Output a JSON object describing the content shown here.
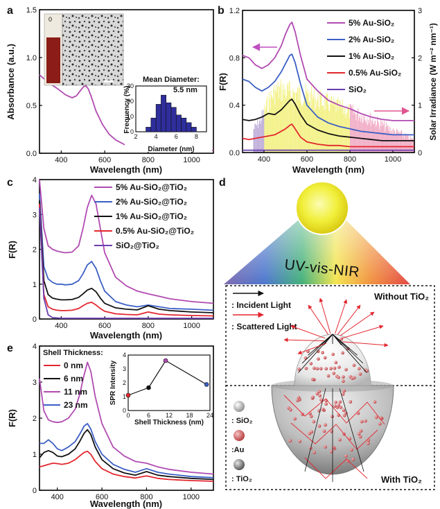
{
  "panel_labels": [
    "a",
    "b",
    "c",
    "d",
    "e"
  ],
  "chart_data": [
    {
      "panel": "a",
      "type": "line",
      "xlabel": "Wavelength (nm)",
      "ylabel": "Absorbance (a.u.)",
      "xlim": [
        300,
        1100
      ],
      "ylim": [
        0,
        1.5
      ],
      "xticks": [
        "400",
        "600",
        "800",
        "1000"
      ],
      "yticks": [
        "0.0",
        "0.5",
        "1.0",
        "1.5"
      ],
      "series": [
        {
          "color": "#b14ab1",
          "x": [
            300,
            340,
            380,
            420,
            450,
            470,
            490,
            505,
            515,
            525,
            540,
            560,
            590,
            620,
            650,
            700,
            800,
            900,
            1000,
            1100
          ],
          "y": [
            0.82,
            0.74,
            0.68,
            0.61,
            0.58,
            0.6,
            0.66,
            0.7,
            0.7,
            0.67,
            0.58,
            0.44,
            0.3,
            0.2,
            0.14,
            0.08,
            0.05,
            0.04,
            0.03,
            0.03
          ]
        }
      ],
      "inset_image_label": "0",
      "inset_hist": {
        "type": "bar",
        "title": "Mean Diameter:",
        "value_label": "5.5 nm",
        "xlabel": "Diameter (nm)",
        "ylabel": "Frequency (%)",
        "xlim": [
          2,
          9
        ],
        "ylim": [
          0,
          30
        ],
        "xticks": [
          "2",
          "4",
          "6",
          "8"
        ],
        "yticks": [
          "0",
          "10",
          "20",
          "30"
        ],
        "ytick_values": [
          0,
          10,
          20,
          30
        ],
        "xtick_values": [
          2,
          4,
          6,
          8
        ],
        "bins": [
          3,
          3.5,
          4,
          4.5,
          5,
          5.5,
          6,
          6.5,
          7,
          7.5,
          8
        ],
        "values": [
          3,
          9,
          18,
          24,
          19,
          16,
          11,
          9,
          6,
          3
        ],
        "color": "#2e2e9c"
      }
    },
    {
      "panel": "b",
      "type": "line",
      "xlabel": "Wavelength (nm)",
      "ylabel": "F(R)",
      "ylabel_right": "Solar Irradiance (W m⁻² nm⁻¹)",
      "xlim": [
        300,
        1100
      ],
      "ylim": [
        0,
        1.2
      ],
      "ylim_right": [
        0,
        3
      ],
      "xticks": [
        "400",
        "600",
        "800",
        "1000"
      ],
      "yticks": [
        "0.0",
        "0.4",
        "0.8",
        "1.2"
      ],
      "yticks_right": [
        "0",
        "1",
        "2",
        "3"
      ],
      "legend_position": "top-right",
      "series": [
        {
          "name": "5% Au-SiO₂",
          "color": "#b14ab1",
          "x": [
            300,
            330,
            360,
            390,
            420,
            450,
            480,
            500,
            520,
            530,
            545,
            570,
            600,
            650,
            700,
            750,
            800,
            850,
            900,
            950,
            1000,
            1050,
            1100
          ],
          "y": [
            0.82,
            0.8,
            0.74,
            0.71,
            0.74,
            0.8,
            0.9,
            1.0,
            1.08,
            1.1,
            1.02,
            0.82,
            0.62,
            0.52,
            0.44,
            0.4,
            0.37,
            0.33,
            0.3,
            0.28,
            0.27,
            0.27,
            0.27
          ]
        },
        {
          "name": "2% Au-SiO₂",
          "color": "#3b5fc4",
          "x": [
            300,
            330,
            360,
            390,
            420,
            450,
            480,
            500,
            520,
            530,
            545,
            570,
            600,
            650,
            700,
            750,
            800,
            850,
            900,
            950,
            1000,
            1050,
            1100
          ],
          "y": [
            0.62,
            0.6,
            0.55,
            0.52,
            0.55,
            0.6,
            0.68,
            0.75,
            0.82,
            0.83,
            0.76,
            0.58,
            0.4,
            0.3,
            0.25,
            0.22,
            0.2,
            0.18,
            0.17,
            0.16,
            0.15,
            0.15,
            0.15
          ]
        },
        {
          "name": "1% Au-SiO₂",
          "color": "#111111",
          "x": [
            300,
            330,
            360,
            390,
            420,
            450,
            480,
            500,
            520,
            530,
            545,
            570,
            600,
            650,
            700,
            750,
            800,
            850,
            900,
            950,
            1000,
            1050,
            1100
          ],
          "y": [
            0.28,
            0.27,
            0.28,
            0.3,
            0.33,
            0.32,
            0.36,
            0.4,
            0.44,
            0.45,
            0.41,
            0.32,
            0.24,
            0.19,
            0.16,
            0.14,
            0.13,
            0.12,
            0.11,
            0.1,
            0.1,
            0.1,
            0.1
          ]
        },
        {
          "name": "0.5% Au-SiO₂",
          "color": "#e3262e",
          "x": [
            300,
            330,
            360,
            390,
            420,
            450,
            480,
            500,
            520,
            530,
            545,
            570,
            600,
            650,
            700,
            750,
            800,
            850,
            900,
            950,
            1000,
            1050,
            1100
          ],
          "y": [
            0.12,
            0.11,
            0.12,
            0.13,
            0.14,
            0.15,
            0.18,
            0.2,
            0.23,
            0.24,
            0.2,
            0.13,
            0.09,
            0.07,
            0.06,
            0.06,
            0.05,
            0.05,
            0.05,
            0.05,
            0.05,
            0.05,
            0.05
          ]
        },
        {
          "name": "SiO₂",
          "color": "#6a3cb0",
          "x": [
            300,
            500,
            800,
            1100
          ],
          "y": [
            0.02,
            0.02,
            0.02,
            0.02
          ]
        }
      ],
      "solar_irradiance": {
        "colors": {
          "uv": "#b9a6d6",
          "vis": "#f2f07a",
          "nir": "#f0a5bf"
        },
        "x": [
          350,
          380,
          400,
          420,
          450,
          480,
          500,
          550,
          600,
          650,
          700,
          750,
          800,
          850,
          900,
          950,
          1000,
          1050,
          1100
        ],
        "y": [
          0.6,
          0.8,
          1.05,
          1.3,
          1.55,
          1.6,
          1.55,
          1.5,
          1.45,
          1.35,
          1.25,
          1.15,
          1.05,
          0.95,
          0.85,
          0.7,
          0.55,
          0.45,
          0.3
        ]
      }
    },
    {
      "panel": "c",
      "type": "line",
      "xlabel": "Wavelength (nm)",
      "ylabel": "F(R)",
      "xlim": [
        300,
        1100
      ],
      "ylim": [
        0,
        4
      ],
      "xticks": [
        "400",
        "600",
        "800",
        "1000"
      ],
      "yticks": [
        "0",
        "1",
        "2",
        "3",
        "4"
      ],
      "legend_position": "top-right",
      "series": [
        {
          "name": "5% Au-SiO₂@TiO₂",
          "color": "#b14ab1",
          "x": [
            300,
            320,
            340,
            360,
            380,
            400,
            420,
            450,
            480,
            500,
            520,
            540,
            560,
            580,
            600,
            650,
            700,
            750,
            800,
            850,
            900,
            1000,
            1100
          ],
          "y": [
            4.0,
            2.6,
            2.1,
            2.0,
            1.95,
            1.92,
            1.9,
            1.92,
            2.1,
            2.6,
            3.2,
            3.55,
            3.3,
            2.6,
            1.9,
            1.2,
            0.95,
            0.8,
            0.72,
            0.65,
            0.58,
            0.5,
            0.45
          ]
        },
        {
          "name": "2% Au-SiO₂@TiO₂",
          "color": "#3b5fc4",
          "x": [
            300,
            320,
            340,
            360,
            380,
            400,
            420,
            450,
            480,
            500,
            520,
            540,
            560,
            580,
            600,
            650,
            700,
            750,
            800,
            850,
            900,
            1000,
            1100
          ],
          "y": [
            3.6,
            1.5,
            1.15,
            1.05,
            1.0,
            1.0,
            0.98,
            1.0,
            1.1,
            1.3,
            1.55,
            1.65,
            1.45,
            1.1,
            0.8,
            0.5,
            0.4,
            0.35,
            0.4,
            0.35,
            0.3,
            0.28,
            0.25
          ]
        },
        {
          "name": "1% Au-SiO₂@TiO₂",
          "color": "#111111",
          "x": [
            300,
            320,
            340,
            360,
            380,
            400,
            420,
            450,
            480,
            500,
            520,
            540,
            560,
            580,
            600,
            650,
            700,
            750,
            800,
            850,
            900,
            1000,
            1100
          ],
          "y": [
            3.4,
            1.1,
            0.7,
            0.6,
            0.57,
            0.55,
            0.55,
            0.56,
            0.62,
            0.72,
            0.83,
            0.88,
            0.78,
            0.6,
            0.45,
            0.32,
            0.28,
            0.26,
            0.38,
            0.28,
            0.24,
            0.2,
            0.18
          ]
        },
        {
          "name": "0.5% Au-SiO₂@TiO₂",
          "color": "#e3262e",
          "x": [
            300,
            320,
            340,
            360,
            380,
            400,
            420,
            450,
            480,
            500,
            520,
            540,
            560,
            580,
            600,
            650,
            700,
            750,
            800,
            850,
            900,
            1000,
            1100
          ],
          "y": [
            3.3,
            0.7,
            0.35,
            0.28,
            0.25,
            0.24,
            0.24,
            0.25,
            0.3,
            0.38,
            0.45,
            0.48,
            0.4,
            0.3,
            0.22,
            0.15,
            0.13,
            0.12,
            0.2,
            0.14,
            0.12,
            0.1,
            0.09
          ]
        },
        {
          "name": "SiO₂@TiO₂",
          "color": "#6a3cb0",
          "x": [
            300,
            320,
            340,
            360,
            400,
            500,
            700,
            1100
          ],
          "y": [
            3.2,
            0.6,
            0.12,
            0.04,
            0.02,
            0.02,
            0.02,
            0.02
          ]
        }
      ]
    },
    {
      "panel": "e",
      "type": "line",
      "xlabel": "Wavelength (nm)",
      "ylabel": "F(R)",
      "xlim": [
        320,
        1100
      ],
      "ylim": [
        0,
        4
      ],
      "xticks": [
        "400",
        "600",
        "800",
        "1000"
      ],
      "yticks": [
        "0",
        "1",
        "2",
        "3",
        "4"
      ],
      "legend_title": "Shell Thickness:",
      "legend_position": "top-left",
      "series": [
        {
          "name": "0 nm",
          "color": "#e3262e",
          "x": [
            320,
            340,
            360,
            380,
            400,
            420,
            450,
            480,
            500,
            520,
            535,
            550,
            570,
            600,
            650,
            700,
            750,
            800,
            850,
            900,
            1000,
            1100
          ],
          "y": [
            0.65,
            0.68,
            0.72,
            0.75,
            0.74,
            0.72,
            0.75,
            0.85,
            0.95,
            1.05,
            1.08,
            1.0,
            0.8,
            0.6,
            0.45,
            0.38,
            0.34,
            0.4,
            0.33,
            0.3,
            0.27,
            0.25
          ]
        },
        {
          "name": "6 nm",
          "color": "#111111",
          "x": [
            320,
            340,
            360,
            380,
            400,
            420,
            450,
            480,
            500,
            520,
            535,
            550,
            570,
            600,
            650,
            700,
            750,
            800,
            850,
            900,
            1000,
            1100
          ],
          "y": [
            0.9,
            1.05,
            1.1,
            1.05,
            0.95,
            0.93,
            1.0,
            1.15,
            1.35,
            1.58,
            1.68,
            1.55,
            1.2,
            0.85,
            0.6,
            0.48,
            0.42,
            0.52,
            0.42,
            0.38,
            0.33,
            0.3
          ]
        },
        {
          "name": "11 nm",
          "color": "#b14ab1",
          "x": [
            320,
            340,
            360,
            380,
            400,
            420,
            450,
            480,
            500,
            520,
            535,
            550,
            570,
            600,
            650,
            700,
            750,
            800,
            850,
            900,
            1000,
            1100
          ],
          "y": [
            3.1,
            2.2,
            1.95,
            1.9,
            1.88,
            1.9,
            2.0,
            2.25,
            2.65,
            3.2,
            3.55,
            3.3,
            2.6,
            1.85,
            1.2,
            0.95,
            0.8,
            0.75,
            0.65,
            0.58,
            0.5,
            0.45
          ]
        },
        {
          "name": "23 nm",
          "color": "#3b5fc4",
          "x": [
            320,
            340,
            360,
            380,
            400,
            420,
            450,
            480,
            500,
            520,
            535,
            550,
            570,
            600,
            650,
            700,
            750,
            800,
            850,
            900,
            1000,
            1100
          ],
          "y": [
            1.3,
            1.3,
            1.4,
            1.3,
            1.15,
            1.1,
            1.2,
            1.35,
            1.55,
            1.78,
            1.85,
            1.7,
            1.35,
            1.0,
            0.72,
            0.58,
            0.5,
            0.6,
            0.5,
            0.45,
            0.38,
            0.35
          ]
        }
      ],
      "inset": {
        "type": "line",
        "xlabel": "Shell Thickness (nm)",
        "ylabel": "SPR Intensity",
        "xlim": [
          0,
          24
        ],
        "ylim": [
          0,
          4
        ],
        "xticks": [
          "0",
          "6",
          "12",
          "18",
          "24"
        ],
        "yticks": [
          "0",
          "1",
          "2",
          "3",
          "4"
        ],
        "xtick_values": [
          0,
          6,
          12,
          18,
          24
        ],
        "ytick_values": [
          0,
          1,
          2,
          3,
          4
        ],
        "x": [
          0,
          6,
          11,
          23
        ],
        "y": [
          1.1,
          1.65,
          3.6,
          1.88
        ],
        "point_colors": [
          "#e3262e",
          "#111111",
          "#b14ab1",
          "#3b5fc4"
        ]
      }
    }
  ],
  "diagram_d": {
    "band_label": "UV-vis-NIR",
    "without_label": "Without TiO₂",
    "with_label": "With TiO₂",
    "legend": [
      {
        "label": ": Incident Light",
        "color": "#111111"
      },
      {
        "label": ": Scattered Light",
        "color": "#e3262e"
      }
    ],
    "materials": [
      {
        "label": ": SiO₂",
        "color": "#bdbdbd"
      },
      {
        "label": ":Au",
        "color": "#c9565a"
      },
      {
        "label": ": TiO₂",
        "color": "#8a8a8a"
      }
    ]
  }
}
